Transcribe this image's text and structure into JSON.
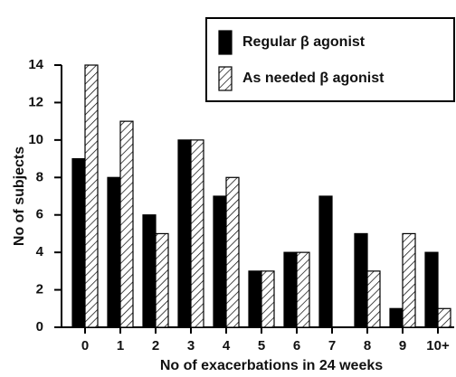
{
  "chart_data": {
    "type": "bar",
    "x_label": "No of exacerbations in 24 weeks",
    "y_label": "No of subjects",
    "categories": [
      "0",
      "1",
      "2",
      "3",
      "4",
      "5",
      "6",
      "7",
      "8",
      "9",
      "10+"
    ],
    "series": [
      {
        "name": "Regular β agonist",
        "color": "#000000",
        "hatch": false,
        "values": [
          9,
          8,
          6,
          10,
          7,
          3,
          4,
          7,
          5,
          1,
          4
        ]
      },
      {
        "name": "As needed β agonist",
        "color": "#ffffff",
        "hatch": true,
        "values": [
          14,
          11,
          5,
          10,
          8,
          3,
          4,
          0,
          3,
          5,
          1
        ]
      }
    ],
    "ylim": [
      0,
      14
    ],
    "yticks": [
      0,
      2,
      4,
      6,
      8,
      10,
      12,
      14
    ],
    "legend": "top-right",
    "grid": false
  }
}
